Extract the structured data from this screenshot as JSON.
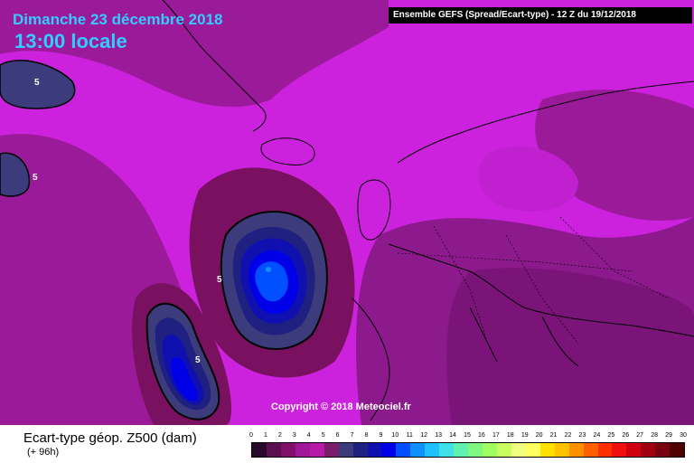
{
  "header": {
    "date": "Dimanche 23 décembre 2018",
    "time": "13:00 locale",
    "model": "Ensemble GEFS  (Spread/Ecart-type) - 12 Z du 19/12/2018"
  },
  "map": {
    "copyright": "Copyright © 2018 Meteociel.fr",
    "contour_value": "5",
    "background_color": "#cc22dd",
    "land_outline_color": "#000000"
  },
  "legend": {
    "title": "Ecart-type géop. Z500 (dam)",
    "lead": "(+ 96h)",
    "ticks": [
      "0",
      "1",
      "2",
      "3",
      "4",
      "5",
      "6",
      "7",
      "8",
      "9",
      "10",
      "11",
      "12",
      "13",
      "14",
      "15",
      "16",
      "17",
      "18",
      "19",
      "20",
      "21",
      "22",
      "23",
      "24",
      "25",
      "26",
      "27",
      "28",
      "29",
      "30"
    ],
    "colors": [
      "#2a0a2a",
      "#5a1050",
      "#80106a",
      "#a0189a",
      "#b81aa8",
      "#7a1c6a",
      "#3c3c7c",
      "#202080",
      "#1010b0",
      "#0000e8",
      "#0050ff",
      "#1090ff",
      "#20c0ff",
      "#40e0e8",
      "#60f0b0",
      "#80f880",
      "#a0ff60",
      "#c8ff60",
      "#f0ff80",
      "#ffff60",
      "#ffe000",
      "#ffc000",
      "#ff9000",
      "#ff6000",
      "#ff3000",
      "#f01010",
      "#d00010",
      "#a00010",
      "#780010",
      "#500000"
    ]
  }
}
